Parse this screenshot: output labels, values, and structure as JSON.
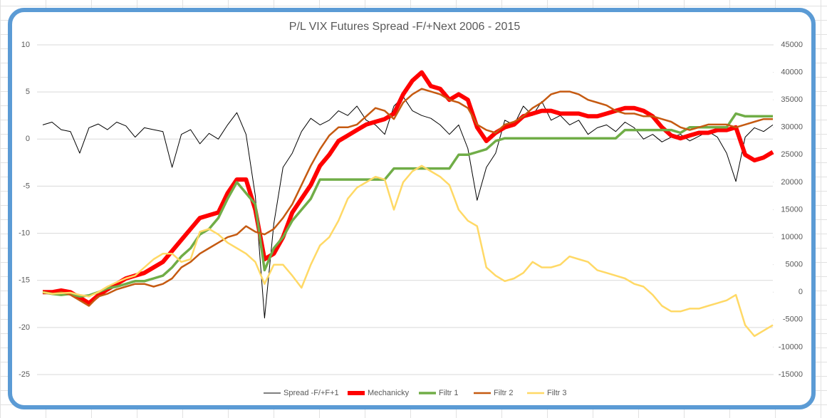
{
  "chart_data": {
    "type": "line",
    "title": "P/L VIX Futures Spread -F/+Next 2006 - 2015",
    "ylim": [
      -25,
      10
    ],
    "yticks": [
      10,
      5,
      0,
      -5,
      -10,
      -15,
      -20,
      -25
    ],
    "y2lim": [
      -15000,
      45000
    ],
    "y2ticks": [
      45000,
      40000,
      35000,
      30000,
      25000,
      20000,
      15000,
      10000,
      5000,
      0,
      -5000,
      -10000,
      -15000
    ],
    "grid": true,
    "legend": "bottom",
    "series": [
      {
        "name": "Spread -F/+F+1",
        "color": "#000000",
        "values": [
          1.5,
          1.8,
          1.0,
          0.8,
          -1.5,
          1.2,
          1.6,
          1.0,
          1.8,
          1.4,
          0.2,
          1.2,
          1.0,
          0.8,
          -3.0,
          0.5,
          1.0,
          -0.5,
          0.6,
          0.0,
          1.5,
          2.8,
          0.5,
          -6,
          -19,
          -9,
          -3,
          -1.5,
          0.8,
          2.2,
          1.5,
          2.0,
          3.0,
          2.5,
          3.5,
          2.0,
          1.5,
          0.5,
          3.5,
          4.5,
          3.0,
          2.5,
          2.2,
          1.5,
          0.5,
          1.5,
          -1.0,
          -6.5,
          -3.0,
          -1.5,
          2.0,
          1.5,
          3.5,
          2.5,
          4.0,
          2.0,
          2.5,
          1.5,
          2.0,
          0.5,
          1.2,
          1.5,
          0.8,
          1.8,
          1.2,
          0.0,
          0.5,
          -0.3,
          0.2,
          0.5,
          -0.2,
          0.3,
          0.8,
          0.2,
          -1.5,
          -4.5,
          0.2,
          1.2,
          0.8,
          1.5
        ]
      },
      {
        "name": "Mechanicky",
        "color": "#ff0000",
        "axis": "y2",
        "values": [
          0,
          0,
          300,
          0,
          -1000,
          -2000,
          -600,
          500,
          1500,
          2500,
          3000,
          3500,
          4500,
          5500,
          7500,
          9500,
          11500,
          13500,
          14000,
          14500,
          18000,
          20500,
          20500,
          15000,
          6000,
          7000,
          10000,
          14500,
          17000,
          19500,
          23000,
          25000,
          27500,
          28500,
          29500,
          30500,
          31000,
          31500,
          32500,
          36000,
          38500,
          40000,
          37500,
          37000,
          35000,
          36000,
          35000,
          30000,
          27500,
          29000,
          30000,
          30500,
          32000,
          32500,
          33000,
          33000,
          32500,
          32500,
          32500,
          32000,
          32000,
          32500,
          33000,
          33500,
          33500,
          33000,
          32000,
          30000,
          28500,
          28000,
          28500,
          29000,
          29000,
          29500,
          29500,
          30000,
          25000,
          24000,
          24500,
          25500
        ]
      },
      {
        "name": "Filtr 1",
        "color": "#70ad47",
        "axis": "y2",
        "values": [
          0,
          -300,
          -500,
          -300,
          -800,
          -600,
          0,
          700,
          1000,
          1500,
          2000,
          2000,
          2500,
          3000,
          4500,
          6500,
          8000,
          10500,
          11500,
          13500,
          17000,
          20000,
          18000,
          16000,
          4000,
          8000,
          10000,
          13000,
          15000,
          17000,
          20500,
          20500,
          20500,
          20500,
          20500,
          20500,
          20500,
          20500,
          22500,
          22500,
          22500,
          22500,
          22500,
          22500,
          22500,
          25000,
          25000,
          25500,
          26000,
          27500,
          28000,
          28000,
          28000,
          28000,
          28000,
          28000,
          28000,
          28000,
          28000,
          28000,
          28000,
          28000,
          28000,
          29500,
          29500,
          29500,
          29500,
          29500,
          29500,
          29000,
          30000,
          30000,
          30000,
          30000,
          30000,
          32500,
          32000,
          32000,
          32000,
          32000
        ]
      },
      {
        "name": "Filtr 2",
        "color": "#c55a11",
        "axis": "y2",
        "values": [
          0,
          -300,
          0,
          -500,
          -1500,
          -2500,
          -800,
          -300,
          500,
          1000,
          1500,
          1500,
          1000,
          1500,
          2500,
          4500,
          5500,
          7000,
          8000,
          9000,
          10000,
          10500,
          12000,
          11000,
          10500,
          11500,
          13500,
          16000,
          19500,
          23000,
          26000,
          28500,
          30000,
          30000,
          30500,
          32000,
          33500,
          33000,
          31500,
          34500,
          36000,
          37000,
          36500,
          36000,
          35000,
          34500,
          33500,
          30500,
          29500,
          29000,
          30500,
          31000,
          32000,
          33500,
          34500,
          36000,
          36500,
          36500,
          36000,
          35000,
          34500,
          34000,
          33000,
          32500,
          32500,
          32000,
          32000,
          31500,
          31000,
          30000,
          29500,
          30000,
          30500,
          30500,
          30500,
          30000,
          30500,
          31000,
          31500,
          31500
        ]
      },
      {
        "name": "Filtr 3",
        "color": "#ffd966",
        "axis": "y2",
        "values": [
          0,
          -300,
          -200,
          -100,
          -500,
          -800,
          0,
          1000,
          1800,
          2500,
          3000,
          4500,
          6000,
          7000,
          7000,
          5500,
          6000,
          11000,
          11500,
          10500,
          9000,
          8000,
          7000,
          5500,
          1500,
          5000,
          5000,
          3000,
          800,
          5000,
          8500,
          10000,
          13000,
          17000,
          19000,
          20000,
          21000,
          20500,
          15000,
          20000,
          22000,
          23000,
          22000,
          21000,
          19500,
          15000,
          13000,
          12000,
          4500,
          3000,
          2000,
          2500,
          3500,
          5500,
          4500,
          4500,
          5000,
          6500,
          6000,
          5500,
          4000,
          3500,
          3000,
          2500,
          1500,
          1000,
          -500,
          -2500,
          -3500,
          -3500,
          -3000,
          -3000,
          -2500,
          -2000,
          -1500,
          -500,
          -6000,
          -8000,
          -7000,
          -6000
        ]
      }
    ]
  }
}
